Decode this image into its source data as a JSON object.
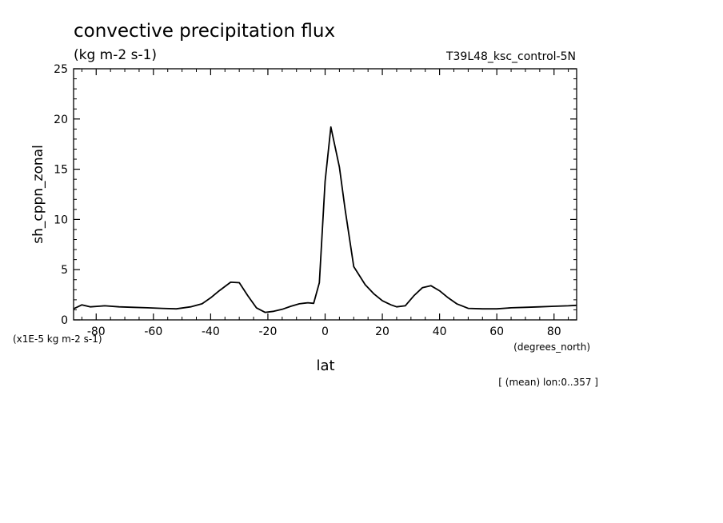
{
  "title": "convective precipitation flux",
  "units": "(kg m-2 s-1)",
  "experiment": "T39L48_ksc_control-5N",
  "scale_note": "(x1E-5 kg m-2 s-1)",
  "x_units_note": "(degrees_north)",
  "footer_note": "[ (mean) lon:0..357 ]",
  "chart_data": {
    "type": "line",
    "title": "convective precipitation flux",
    "xlabel": "lat",
    "ylabel": "sh_cppn_zonal",
    "xlim": [
      -87.9,
      87.9
    ],
    "ylim": [
      0,
      25
    ],
    "x_ticks": [
      -80,
      -60,
      -40,
      -20,
      0,
      20,
      40,
      60,
      80
    ],
    "y_ticks": [
      0,
      5,
      10,
      15,
      20,
      25
    ],
    "x_tick_labels": [
      "-80",
      "-60",
      "-40",
      "-20",
      "0",
      "20",
      "40",
      "60",
      "80"
    ],
    "y_tick_labels": [
      "0",
      "5",
      "10",
      "15",
      "20",
      "25"
    ],
    "grid": false,
    "series": [
      {
        "x": [
          -87.9,
          -85,
          -82,
          -77,
          -72,
          -67,
          -62,
          -57,
          -52,
          -47,
          -43,
          -40,
          -37,
          -33,
          -30,
          -27,
          -24,
          -21,
          -18,
          -15,
          -12,
          -9,
          -6,
          -4,
          -2,
          0,
          2,
          5,
          7,
          10,
          14,
          17,
          20,
          23,
          25,
          28,
          31,
          34,
          37,
          40,
          43,
          46,
          50,
          55,
          60,
          65,
          70,
          75,
          80,
          85,
          87.9
        ],
        "values": [
          1.1,
          1.5,
          1.3,
          1.4,
          1.3,
          1.25,
          1.2,
          1.15,
          1.1,
          1.3,
          1.6,
          2.2,
          2.9,
          3.75,
          3.7,
          2.4,
          1.2,
          0.75,
          0.85,
          1.05,
          1.35,
          1.6,
          1.7,
          1.65,
          3.7,
          13.8,
          19.2,
          15.2,
          11.0,
          5.3,
          3.5,
          2.6,
          1.9,
          1.5,
          1.3,
          1.4,
          2.4,
          3.2,
          3.4,
          2.9,
          2.2,
          1.6,
          1.15,
          1.1,
          1.1,
          1.2,
          1.25,
          1.3,
          1.35,
          1.4,
          1.45
        ]
      }
    ]
  }
}
